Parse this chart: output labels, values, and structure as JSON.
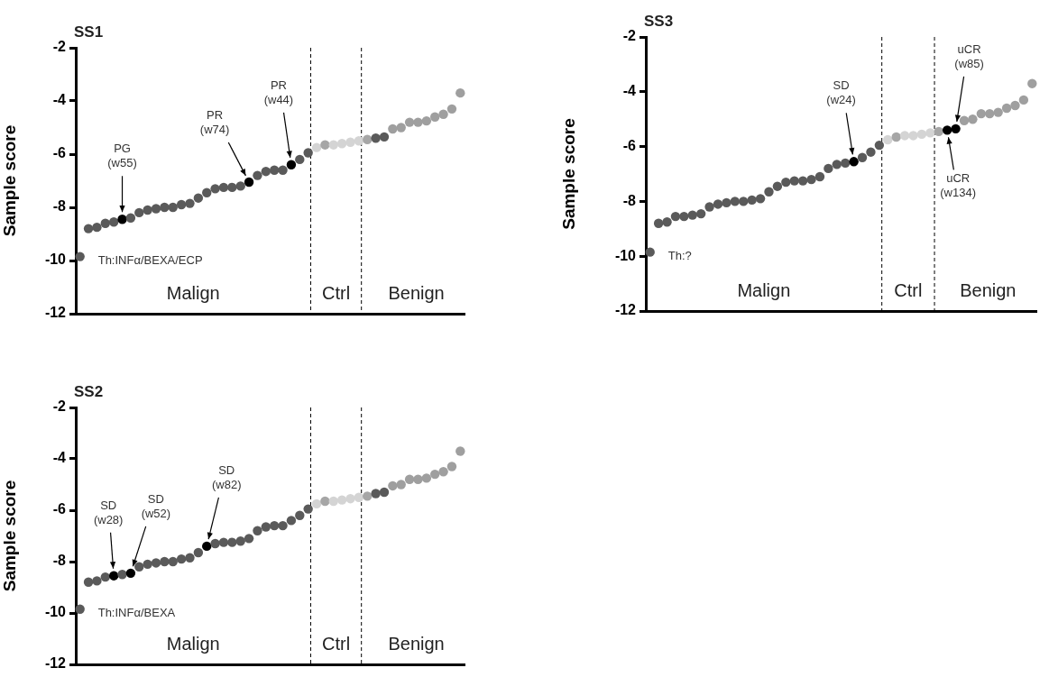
{
  "chart_data": [
    {
      "type": "scatter",
      "title": "SS1",
      "ylabel": "Sample score",
      "categories": [
        null,
        null,
        null,
        null,
        null,
        null,
        null,
        null,
        null,
        null,
        null,
        null,
        null,
        null,
        null,
        null,
        null,
        null,
        null,
        null,
        null,
        null,
        null,
        null,
        null,
        null,
        null,
        null,
        null,
        null,
        null,
        null,
        null,
        null,
        null,
        null,
        null,
        null,
        null,
        null,
        null,
        null,
        null,
        null,
        null,
        null
      ],
      "ylim": [
        -12,
        -2
      ],
      "yticks": [
        -2,
        -4,
        -6,
        -8,
        -10,
        -12
      ],
      "tick_labels": "y",
      "grid": false,
      "legend": false,
      "marker": "circle",
      "series": [
        {
          "values": [
            -9.85,
            -8.8,
            -8.75,
            -8.6,
            -8.55,
            -8.45,
            -8.4,
            -8.2,
            -8.1,
            -8.05,
            -8.0,
            -8.0,
            -7.9,
            -7.85,
            -7.65,
            -7.45,
            -7.3,
            -7.25,
            -7.25,
            -7.2,
            -7.05,
            -6.8,
            -6.65,
            -6.6,
            -6.6,
            -6.4,
            -6.2,
            -5.95,
            -5.75,
            -5.65,
            -5.65,
            -5.6,
            -5.55,
            -5.5,
            -5.45,
            -5.4,
            -5.35,
            -5.05,
            -5.0,
            -4.8,
            -4.8,
            -4.75,
            -4.6,
            -4.5,
            -4.3,
            -3.7
          ],
          "colors": [
            "#5a5a5a",
            "#5a5a5a",
            "#5a5a5a",
            "#5a5a5a",
            "#5a5a5a",
            "#000000",
            "#5a5a5a",
            "#5a5a5a",
            "#5a5a5a",
            "#5a5a5a",
            "#5a5a5a",
            "#5a5a5a",
            "#5a5a5a",
            "#5a5a5a",
            "#5a5a5a",
            "#5a5a5a",
            "#5a5a5a",
            "#5a5a5a",
            "#5a5a5a",
            "#5a5a5a",
            "#000000",
            "#5a5a5a",
            "#5a5a5a",
            "#5a5a5a",
            "#5a5a5a",
            "#000000",
            "#5a5a5a",
            "#5a5a5a",
            "#d4d4d4",
            "#a6a6a6",
            "#d4d4d4",
            "#d4d4d4",
            "#d4d4d4",
            "#d4d4d4",
            "#a6a6a6",
            "#5a5a5a",
            "#5a5a5a",
            "#9f9f9f",
            "#9f9f9f",
            "#9f9f9f",
            "#9f9f9f",
            "#9f9f9f",
            "#9f9f9f",
            "#9f9f9f",
            "#9f9f9f",
            "#9f9f9f"
          ]
        }
      ],
      "annotations": [
        "Th:INFα/BEXA/ECP",
        "PG\n(w55)",
        "PR\n(w74)",
        "PR\n(w44)",
        "Malign",
        "Ctrl",
        "Benign"
      ]
    },
    {
      "type": "scatter",
      "title": "SS3",
      "ylabel": "Sample score",
      "categories": [
        null,
        null,
        null,
        null,
        null,
        null,
        null,
        null,
        null,
        null,
        null,
        null,
        null,
        null,
        null,
        null,
        null,
        null,
        null,
        null,
        null,
        null,
        null,
        null,
        null,
        null,
        null,
        null,
        null,
        null,
        null,
        null,
        null,
        null,
        null,
        null,
        null,
        null,
        null,
        null,
        null,
        null,
        null,
        null,
        null,
        null
      ],
      "ylim": [
        -12,
        -2
      ],
      "yticks": [
        -2,
        -4,
        -6,
        -8,
        -10,
        -12
      ],
      "tick_labels": "y",
      "grid": false,
      "legend": false,
      "marker": "circle",
      "series": [
        {
          "values": [
            -9.85,
            -8.8,
            -8.75,
            -8.55,
            -8.55,
            -8.5,
            -8.45,
            -8.2,
            -8.1,
            -8.05,
            -8.0,
            -8.0,
            -7.95,
            -7.9,
            -7.65,
            -7.45,
            -7.3,
            -7.25,
            -7.25,
            -7.2,
            -7.1,
            -6.8,
            -6.65,
            -6.6,
            -6.55,
            -6.4,
            -6.2,
            -5.95,
            -5.75,
            -5.65,
            -5.6,
            -5.6,
            -5.55,
            -5.5,
            -5.45,
            -5.4,
            -5.35,
            -5.05,
            -5.0,
            -4.8,
            -4.8,
            -4.75,
            -4.6,
            -4.5,
            -4.3,
            -3.7
          ],
          "colors": [
            "#5a5a5a",
            "#5a5a5a",
            "#5a5a5a",
            "#5a5a5a",
            "#5a5a5a",
            "#5a5a5a",
            "#5a5a5a",
            "#5a5a5a",
            "#5a5a5a",
            "#5a5a5a",
            "#5a5a5a",
            "#5a5a5a",
            "#5a5a5a",
            "#5a5a5a",
            "#5a5a5a",
            "#5a5a5a",
            "#5a5a5a",
            "#5a5a5a",
            "#5a5a5a",
            "#5a5a5a",
            "#5a5a5a",
            "#5a5a5a",
            "#5a5a5a",
            "#5a5a5a",
            "#000000",
            "#5a5a5a",
            "#5a5a5a",
            "#5a5a5a",
            "#d4d4d4",
            "#a6a6a6",
            "#d4d4d4",
            "#d4d4d4",
            "#d4d4d4",
            "#d4d4d4",
            "#a6a6a6",
            "#000000",
            "#000000",
            "#9f9f9f",
            "#9f9f9f",
            "#9f9f9f",
            "#9f9f9f",
            "#9f9f9f",
            "#9f9f9f",
            "#9f9f9f",
            "#9f9f9f",
            "#9f9f9f"
          ]
        }
      ],
      "annotations": [
        "Th:?",
        "SD\n(w24)",
        "uCR\n(w134)",
        "uCR\n(w85)",
        "Malign",
        "Ctrl",
        "Benign"
      ]
    },
    {
      "type": "scatter",
      "title": "SS2",
      "ylabel": "Sample score",
      "categories": [
        null,
        null,
        null,
        null,
        null,
        null,
        null,
        null,
        null,
        null,
        null,
        null,
        null,
        null,
        null,
        null,
        null,
        null,
        null,
        null,
        null,
        null,
        null,
        null,
        null,
        null,
        null,
        null,
        null,
        null,
        null,
        null,
        null,
        null,
        null,
        null,
        null,
        null,
        null,
        null,
        null,
        null,
        null,
        null,
        null,
        null
      ],
      "ylim": [
        -12,
        -2
      ],
      "yticks": [
        -2,
        -4,
        -6,
        -8,
        -10,
        -12
      ],
      "tick_labels": "y",
      "grid": false,
      "legend": false,
      "marker": "circle",
      "series": [
        {
          "values": [
            -9.85,
            -8.8,
            -8.75,
            -8.6,
            -8.55,
            -8.5,
            -8.45,
            -8.2,
            -8.1,
            -8.05,
            -8.0,
            -8.0,
            -7.9,
            -7.85,
            -7.65,
            -7.4,
            -7.3,
            -7.25,
            -7.25,
            -7.2,
            -7.1,
            -6.8,
            -6.65,
            -6.6,
            -6.6,
            -6.4,
            -6.2,
            -5.95,
            -5.75,
            -5.65,
            -5.65,
            -5.6,
            -5.55,
            -5.5,
            -5.45,
            -5.35,
            -5.3,
            -5.05,
            -5.0,
            -4.8,
            -4.8,
            -4.75,
            -4.6,
            -4.5,
            -4.3,
            -3.7
          ],
          "colors": [
            "#5a5a5a",
            "#5a5a5a",
            "#5a5a5a",
            "#5a5a5a",
            "#000000",
            "#5a5a5a",
            "#000000",
            "#5a5a5a",
            "#5a5a5a",
            "#5a5a5a",
            "#5a5a5a",
            "#5a5a5a",
            "#5a5a5a",
            "#5a5a5a",
            "#5a5a5a",
            "#000000",
            "#5a5a5a",
            "#5a5a5a",
            "#5a5a5a",
            "#5a5a5a",
            "#5a5a5a",
            "#5a5a5a",
            "#5a5a5a",
            "#5a5a5a",
            "#5a5a5a",
            "#5a5a5a",
            "#5a5a5a",
            "#5a5a5a",
            "#d4d4d4",
            "#a6a6a6",
            "#d4d4d4",
            "#d4d4d4",
            "#d4d4d4",
            "#d4d4d4",
            "#a6a6a6",
            "#5a5a5a",
            "#5a5a5a",
            "#9f9f9f",
            "#9f9f9f",
            "#9f9f9f",
            "#9f9f9f",
            "#9f9f9f",
            "#9f9f9f",
            "#9f9f9f",
            "#9f9f9f",
            "#9f9f9f"
          ]
        }
      ],
      "annotations": [
        "Th:INFα/BEXA",
        "SD\n(w28)",
        "SD\n(w52)",
        "SD\n(w82)",
        "Malign",
        "Ctrl",
        "Benign"
      ]
    }
  ]
}
